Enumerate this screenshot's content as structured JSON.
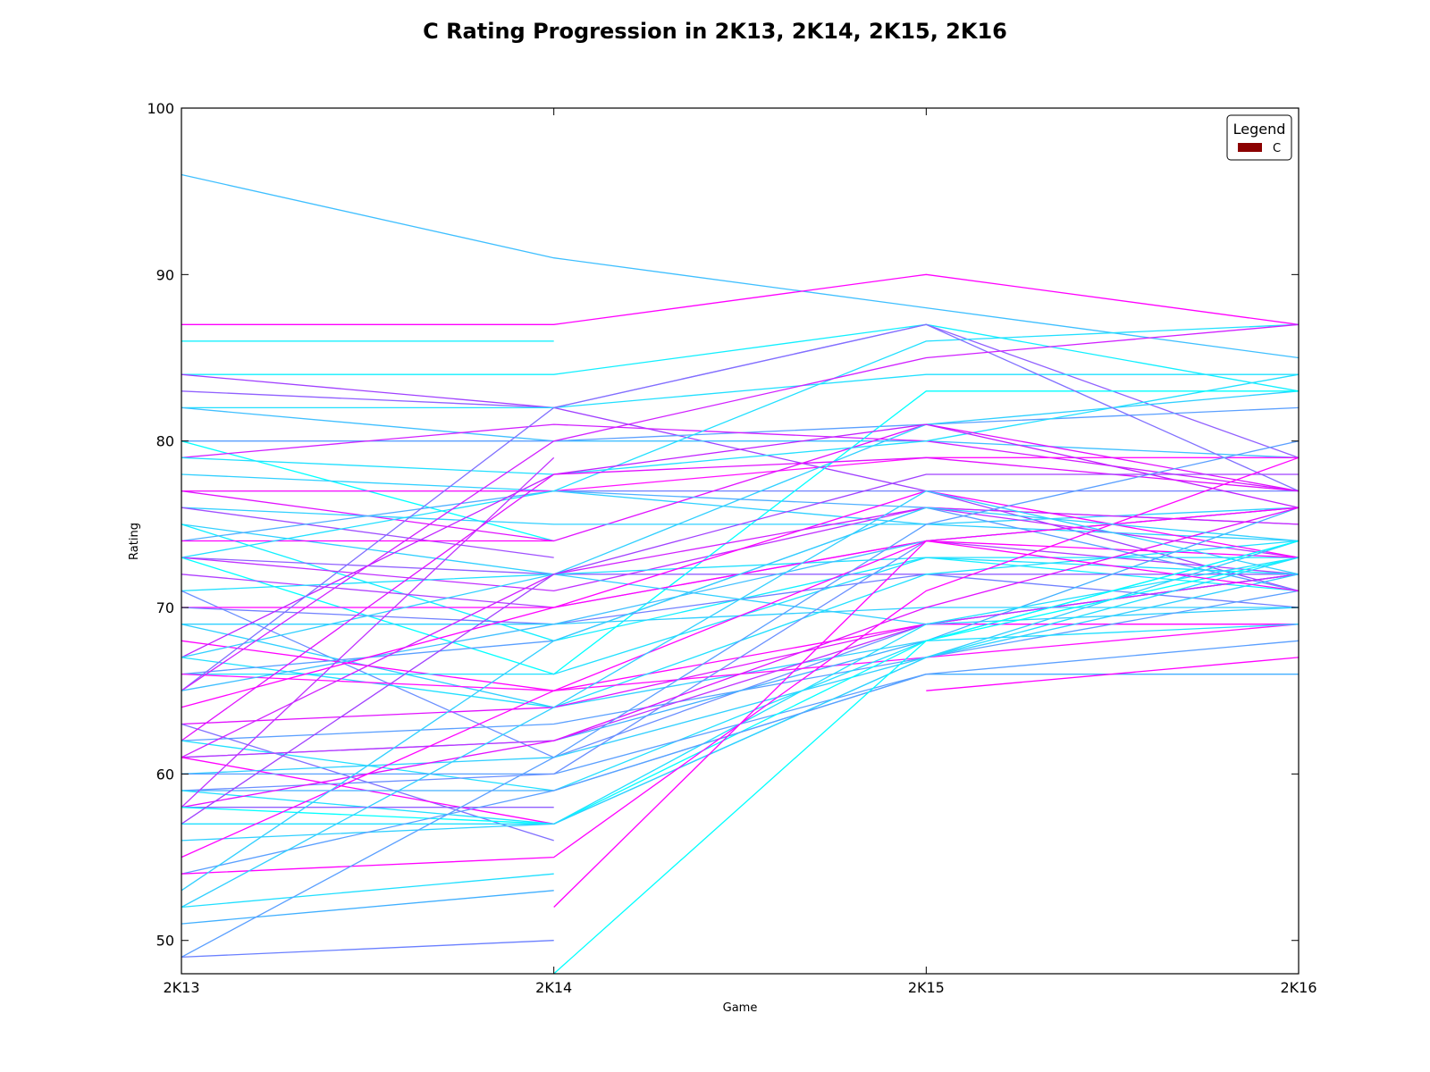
{
  "chart_data": {
    "type": "line",
    "title": "C Rating Progression in 2K13, 2K14, 2K15, 2K16",
    "xlabel": "Game",
    "ylabel": "Rating",
    "categories": [
      "2K13",
      "2K14",
      "2K15",
      "2K16"
    ],
    "ylim": [
      48,
      100
    ],
    "yticks": [
      50,
      60,
      70,
      80,
      90,
      100
    ],
    "grid": false,
    "legend": {
      "title": "Legend",
      "placement": "top-right",
      "entries": [
        {
          "label": "C",
          "color": "#8b0000"
        }
      ]
    },
    "series_color_range": [
      "#00ffff",
      "#ff00ff"
    ],
    "series": [
      {
        "values": [
          96,
          91,
          88,
          85
        ],
        "color": "#3fbfff"
      },
      {
        "values": [
          87,
          87,
          90,
          87
        ],
        "color": "#ff00ff"
      },
      {
        "values": [
          86,
          86,
          null,
          null
        ],
        "color": "#00f0ff"
      },
      {
        "values": [
          84,
          84,
          87,
          83
        ],
        "color": "#10efff"
      },
      {
        "values": [
          84,
          82,
          77,
          71
        ],
        "color": "#a040ff"
      },
      {
        "values": [
          83,
          82,
          87,
          79
        ],
        "color": "#9060ff"
      },
      {
        "values": [
          82,
          82,
          84,
          84
        ],
        "color": "#20dfff"
      },
      {
        "values": [
          82,
          80,
          80,
          79
        ],
        "color": "#40bfff"
      },
      {
        "values": [
          80,
          80,
          81,
          82
        ],
        "color": "#5a9fff"
      },
      {
        "values": [
          80,
          74,
          null,
          null
        ],
        "color": "#00ffff"
      },
      {
        "values": [
          79,
          81,
          80,
          77
        ],
        "color": "#d020ff"
      },
      {
        "values": [
          79,
          78,
          80,
          84
        ],
        "color": "#20dfff"
      },
      {
        "values": [
          78,
          77,
          75,
          76
        ],
        "color": "#30cfff"
      },
      {
        "values": [
          77,
          77,
          77,
          77
        ],
        "color": "#7080ff"
      },
      {
        "values": [
          77,
          77,
          79,
          79
        ],
        "color": "#ff10ff"
      },
      {
        "values": [
          77,
          74,
          81,
          77
        ],
        "color": "#e010ff"
      },
      {
        "values": [
          76,
          75,
          75,
          74
        ],
        "color": "#30cfff"
      },
      {
        "values": [
          76,
          73,
          null,
          null
        ],
        "color": "#a050ff"
      },
      {
        "values": [
          75,
          72,
          81,
          83
        ],
        "color": "#30cfff"
      },
      {
        "values": [
          75,
          68,
          73,
          71
        ],
        "color": "#10efff"
      },
      {
        "values": [
          74,
          77,
          76,
          75
        ],
        "color": "#50afff"
      },
      {
        "values": [
          74,
          74,
          null,
          null
        ],
        "color": "#ff00ff"
      },
      {
        "values": [
          73,
          77,
          86,
          87
        ],
        "color": "#20dfff"
      },
      {
        "values": [
          73,
          72,
          72,
          72
        ],
        "color": "#9060ff"
      },
      {
        "values": [
          73,
          71,
          76,
          73
        ],
        "color": "#c030ff"
      },
      {
        "values": [
          73,
          66,
          83,
          83
        ],
        "color": "#00ffff"
      },
      {
        "values": [
          72,
          70,
          74,
          72
        ],
        "color": "#b040ff"
      },
      {
        "values": [
          71,
          72,
          73,
          73
        ],
        "color": "#20dfff"
      },
      {
        "values": [
          71,
          61,
          69,
          72
        ],
        "color": "#6a8fff"
      },
      {
        "values": [
          70,
          70,
          74,
          73
        ],
        "color": "#ff00ff"
      },
      {
        "values": [
          70,
          69,
          72,
          70
        ],
        "color": "#7080ff"
      },
      {
        "values": [
          69,
          69,
          70,
          70
        ],
        "color": "#30cfff"
      },
      {
        "values": [
          69,
          64,
          68,
          74
        ],
        "color": "#30cfff"
      },
      {
        "values": [
          68,
          65,
          69,
          69
        ],
        "color": "#ff00ff"
      },
      {
        "values": [
          67,
          78,
          81,
          76
        ],
        "color": "#c020ff"
      },
      {
        "values": [
          67,
          72,
          69,
          70
        ],
        "color": "#30cfff"
      },
      {
        "values": [
          67,
          64,
          72,
          74
        ],
        "color": "#20dfff"
      },
      {
        "values": [
          66,
          68,
          76,
          71
        ],
        "color": "#5a9fff"
      },
      {
        "values": [
          66,
          66,
          73,
          72
        ],
        "color": "#20dfff"
      },
      {
        "values": [
          66,
          65,
          67,
          69
        ],
        "color": "#ff10ff"
      },
      {
        "values": [
          65,
          82,
          87,
          77
        ],
        "color": "#8070ff"
      },
      {
        "values": [
          65,
          80,
          85,
          87
        ],
        "color": "#d020ff"
      },
      {
        "values": [
          65,
          69,
          74,
          76
        ],
        "color": "#40bfff"
      },
      {
        "values": [
          64,
          70,
          77,
          73
        ],
        "color": "#ff00ff"
      },
      {
        "values": [
          63,
          64,
          69,
          72
        ],
        "color": "#e010ff"
      },
      {
        "values": [
          63,
          56,
          null,
          null
        ],
        "color": "#8070ff"
      },
      {
        "values": [
          62,
          78,
          79,
          77
        ],
        "color": "#e010ff"
      },
      {
        "values": [
          62,
          63,
          67,
          71
        ],
        "color": "#5a9fff"
      },
      {
        "values": [
          62,
          59,
          68,
          69
        ],
        "color": "#20dfff"
      },
      {
        "values": [
          61,
          72,
          76,
          75
        ],
        "color": "#d020ff"
      },
      {
        "values": [
          61,
          62,
          68,
          76
        ],
        "color": "#40afff"
      },
      {
        "values": [
          61,
          62,
          69,
          72
        ],
        "color": "#c030ff"
      },
      {
        "values": [
          61,
          57,
          null,
          null
        ],
        "color": "#ff00ff"
      },
      {
        "values": [
          60,
          61,
          67,
          74
        ],
        "color": "#30cfff"
      },
      {
        "values": [
          60,
          60,
          66,
          66
        ],
        "color": "#5a9fff"
      },
      {
        "values": [
          59,
          60,
          74,
          76
        ],
        "color": "#6a8fff"
      },
      {
        "values": [
          59,
          59,
          66,
          66
        ],
        "color": "#40afff"
      },
      {
        "values": [
          59,
          57,
          69,
          73
        ],
        "color": "#20dfff"
      },
      {
        "values": [
          58,
          79,
          null,
          null
        ],
        "color": "#c030ff"
      },
      {
        "values": [
          58,
          62,
          70,
          76
        ],
        "color": "#e010ff"
      },
      {
        "values": [
          58,
          58,
          null,
          null
        ],
        "color": "#9060ff"
      },
      {
        "values": [
          58,
          57,
          68,
          73
        ],
        "color": "#00ffff"
      },
      {
        "values": [
          57,
          72,
          78,
          78
        ],
        "color": "#a040ff"
      },
      {
        "values": [
          57,
          57,
          67,
          73
        ],
        "color": "#20dfff"
      },
      {
        "values": [
          56,
          57,
          67,
          72
        ],
        "color": "#30cfff"
      },
      {
        "values": [
          55,
          65,
          74,
          76
        ],
        "color": "#ff00ff"
      },
      {
        "values": [
          54,
          59,
          66,
          68
        ],
        "color": "#5a9fff"
      },
      {
        "values": [
          54,
          55,
          71,
          79
        ],
        "color": "#ff00ff"
      },
      {
        "values": [
          53,
          68,
          76,
          74
        ],
        "color": "#30cfff"
      },
      {
        "values": [
          52,
          64,
          77,
          72
        ],
        "color": "#30cfff"
      },
      {
        "values": [
          52,
          54,
          null,
          null
        ],
        "color": "#20dfff"
      },
      {
        "values": [
          51,
          53,
          null,
          null
        ],
        "color": "#40afff"
      },
      {
        "values": [
          49,
          61,
          75,
          80
        ],
        "color": "#5a9fff"
      },
      {
        "values": [
          49,
          50,
          null,
          null
        ],
        "color": "#6a7fff"
      },
      {
        "values": [
          null,
          52,
          74,
          71
        ],
        "color": "#ff00ff"
      },
      {
        "values": [
          null,
          48,
          68,
          74
        ],
        "color": "#00ffff"
      },
      {
        "values": [
          null,
          null,
          65,
          67
        ],
        "color": "#ff00ff"
      }
    ]
  }
}
